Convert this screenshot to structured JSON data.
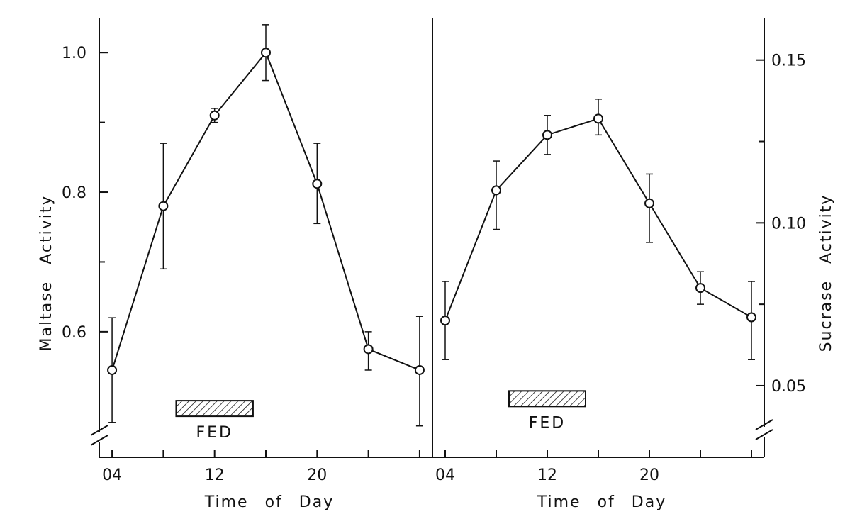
{
  "chart_data": [
    {
      "type": "line",
      "panel": "left",
      "x": [
        4,
        8,
        12,
        16,
        20,
        24,
        28
      ],
      "xticks": [
        4,
        12,
        20
      ],
      "xtick_labels": [
        "04",
        "12",
        "20"
      ],
      "xlim": [
        3,
        29
      ],
      "xlabel": "Time of Day",
      "ylabel": "Maltase Activity",
      "yticks": [
        0.6,
        0.8,
        1.0
      ],
      "ytick_labels": [
        "0.6",
        "0.8",
        "1.0"
      ],
      "minor_yticks": [
        0.7,
        0.9
      ],
      "ylim": [
        0.42,
        1.05
      ],
      "axis_break": true,
      "series": [
        {
          "name": "Maltase",
          "values": [
            0.545,
            0.78,
            0.91,
            1.0,
            0.812,
            0.575,
            0.545
          ],
          "err_low": [
            0.47,
            0.69,
            0.9,
            0.96,
            0.755,
            0.545,
            0.465
          ],
          "err_high": [
            0.62,
            0.87,
            0.92,
            1.04,
            0.87,
            0.6,
            0.622
          ]
        }
      ],
      "annotation": {
        "text": "FED",
        "start": 9,
        "end": 15,
        "value": 0.49
      }
    },
    {
      "type": "line",
      "panel": "right",
      "x": [
        4,
        8,
        12,
        16,
        20,
        24,
        28
      ],
      "xticks": [
        4,
        12,
        20
      ],
      "xtick_labels": [
        "04",
        "12",
        "20"
      ],
      "xlim": [
        3,
        29
      ],
      "xlabel": "Time of Day",
      "ylabel": "Sucrase Activity",
      "yticks": [
        0.05,
        0.1,
        0.15
      ],
      "ytick_labels": [
        "0.05",
        "0.10",
        "0.15"
      ],
      "minor_yticks": [
        0.075,
        0.125
      ],
      "ylim": [
        0.028,
        0.163
      ],
      "axis_break": true,
      "series": [
        {
          "name": "Sucrase",
          "values": [
            0.07,
            0.11,
            0.127,
            0.132,
            0.106,
            0.08,
            0.071
          ],
          "err_low": [
            0.058,
            0.098,
            0.121,
            0.127,
            0.094,
            0.075,
            0.058
          ],
          "err_high": [
            0.082,
            0.119,
            0.133,
            0.138,
            0.115,
            0.085,
            0.082
          ]
        }
      ],
      "annotation": {
        "text": "FED",
        "start": 9,
        "end": 15,
        "value": 0.046
      }
    }
  ]
}
